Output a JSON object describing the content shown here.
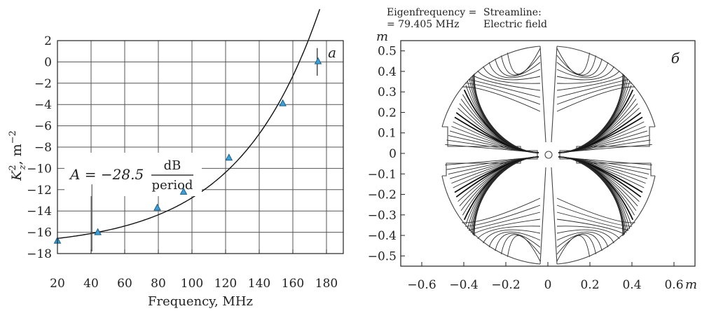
{
  "chart_data": [
    {
      "type": "scatter",
      "panel_label": "a",
      "xlabel": "Frequency, MHz",
      "ylabel": "K_z^2, m^-2",
      "xlim": [
        20,
        190
      ],
      "ylim": [
        -18,
        2
      ],
      "xticks": [
        "20",
        "40",
        "60",
        "80",
        "100",
        "120",
        "140",
        "160",
        "180"
      ],
      "yticks": [
        "2",
        "0",
        "−2",
        "−4",
        "−6",
        "−8",
        "−10",
        "−12",
        "−14",
        "−16",
        "−18"
      ],
      "grid": true,
      "series": [
        {
          "marker": "triangle",
          "color": "#3aa0d8",
          "x": [
            20,
            44,
            79.4,
            95,
            122,
            154,
            175
          ],
          "y": [
            -16.8,
            -16.0,
            -13.7,
            -12.2,
            -9.0,
            -3.9,
            0.05
          ]
        }
      ],
      "fit": {
        "line": "solid",
        "color": "#111111"
      },
      "annotation": {
        "lhs": "A = −28.5",
        "num": "dB",
        "den": "period"
      }
    },
    {
      "type": "streamline",
      "panel_label": "б",
      "header_left_1": "Eigenfrequency =",
      "header_left_2": "= 79.405 MHz",
      "header_right_1": "Streamline:",
      "header_right_2": "Electric field",
      "xunit": "m",
      "yunit": "m",
      "xlim": [
        -0.7,
        0.7
      ],
      "ylim": [
        -0.55,
        0.55
      ],
      "xticks": [
        "−0.6",
        "−0.4",
        "−0.2",
        "0",
        "0.2",
        "0.4",
        "0.6"
      ],
      "yticks": [
        "0.5",
        "0.4",
        "0.3",
        "0.2",
        "0.1",
        "0",
        "−0.1",
        "−0.2",
        "−0.3",
        "−0.4",
        "−0.5"
      ]
    }
  ]
}
